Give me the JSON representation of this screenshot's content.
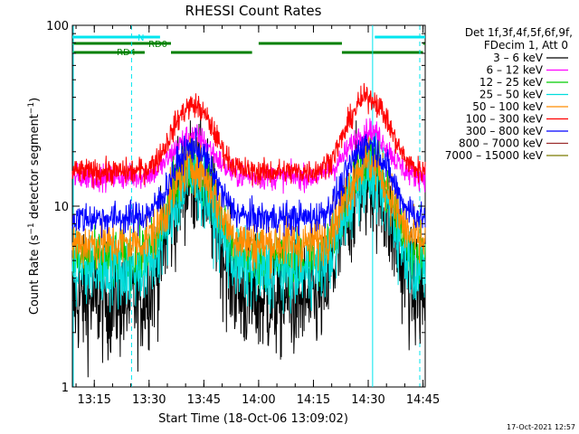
{
  "chart_data": {
    "type": "line",
    "title": "RHESSI Count Rates",
    "xlabel": "Start Time (18-Oct-06 13:09:02)",
    "ylabel": "Count Rate (s⁻¹ detector segment⁻¹)",
    "ylabel_prefix": "Count Rate (s",
    "ylabel_mid": " detector segment",
    "ylabel_suffix": ")",
    "ylabel_exp": "−1",
    "yscale": "log",
    "ylim": [
      1,
      100
    ],
    "xlim_minutes": [
      13.15,
      14.76
    ],
    "x_ticks": [
      {
        "t": 13.25,
        "label": "13:15"
      },
      {
        "t": 13.5,
        "label": "13:30"
      },
      {
        "t": 13.75,
        "label": "13:45"
      },
      {
        "t": 14.0,
        "label": "14:00"
      },
      {
        "t": 14.25,
        "label": "14:15"
      },
      {
        "t": 14.5,
        "label": "14:30"
      },
      {
        "t": 14.75,
        "label": "14:45"
      }
    ],
    "y_ticks": [
      {
        "v": 1,
        "label": "1"
      },
      {
        "v": 10,
        "label": "10"
      },
      {
        "v": 100,
        "label": "100"
      }
    ],
    "legend_title_1": "Det 1f,3f,4f,5f,6f,9f,",
    "legend_title_2": "FDecim 1, Att 0",
    "legend_position": "right",
    "series": [
      {
        "name": "3 – 6 keV",
        "color": "#000000",
        "base": 3.0,
        "peak1": 14.5,
        "peak2": 14.0,
        "noise": 0.16
      },
      {
        "name": "6 – 12 keV",
        "color": "#ff00ff",
        "base": 14.5,
        "peak1": 24.5,
        "peak2": 26.0,
        "noise": 0.035
      },
      {
        "name": "12 – 25 keV",
        "color": "#00cc00",
        "base": 5.0,
        "peak1": 16.5,
        "peak2": 17.0,
        "noise": 0.08
      },
      {
        "name": "25 – 50 keV",
        "color": "#00dddd",
        "base": 4.3,
        "peak1": 13.5,
        "peak2": 14.5,
        "noise": 0.1
      },
      {
        "name": "50 – 100 keV",
        "color": "#ff8c00",
        "base": 6.2,
        "peak1": 17.0,
        "peak2": 17.5,
        "noise": 0.07
      },
      {
        "name": "100 – 300 keV",
        "color": "#ff0000",
        "base": 15.5,
        "peak1": 36.0,
        "peak2": 40.0,
        "noise": 0.035
      },
      {
        "name": "300 – 800 keV",
        "color": "#0000ff",
        "base": 8.6,
        "peak1": 21.0,
        "peak2": 22.0,
        "noise": 0.045
      },
      {
        "name": "800 – 7000 keV",
        "color": "#9b2d2d",
        "base": 0,
        "peak1": 0,
        "peak2": 0,
        "noise": 0
      },
      {
        "name": "7000 – 15000 keV",
        "color": "#7a7a00",
        "base": 0,
        "peak1": 0,
        "peak2": 0,
        "noise": 0
      }
    ],
    "peak1_time": 13.7,
    "peak2_time": 14.5,
    "status_bars": [
      {
        "label": "N",
        "color": "#00e5ee",
        "segments": [
          [
            13.15,
            13.55
          ],
          [
            14.53,
            14.76
          ]
        ]
      },
      {
        "label": "RD0",
        "color": "#008000",
        "segments": [
          [
            13.15,
            13.6
          ],
          [
            14.0,
            14.38
          ],
          [
            14.75,
            14.78
          ]
        ]
      },
      {
        "label": "RD4",
        "color": "#008000",
        "segments": [
          [
            13.15,
            13.48
          ],
          [
            13.6,
            13.97
          ],
          [
            14.38,
            14.75
          ]
        ]
      }
    ],
    "markers": [
      {
        "t": 13.15,
        "style": "solid",
        "color": "#00e5ee"
      },
      {
        "t": 13.42,
        "style": "dashed",
        "color": "#00e5ee"
      },
      {
        "t": 14.52,
        "style": "solid",
        "color": "#00e5ee"
      },
      {
        "t": 14.78,
        "style": "dashed",
        "color": "#00e5ee"
      }
    ]
  },
  "footer": {
    "timestamp": "17-Oct-2021 12:57"
  }
}
